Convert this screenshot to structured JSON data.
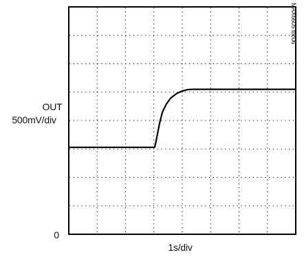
{
  "chart_data": {
    "type": "line",
    "title": "",
    "channel_label": "OUT",
    "vertical_scale": "500mV/div",
    "horizontal_scale": "1s/div",
    "zero_marker": "0",
    "figure_id": "MAX6605 toc06",
    "xlim": [
      0,
      8
    ],
    "ylim": [
      0,
      8
    ],
    "grid": true,
    "x_unit": "div",
    "y_unit": "div",
    "series": [
      {
        "x": [
          0,
          3.03,
          3.08,
          3.2,
          3.3,
          3.45,
          3.6,
          3.8,
          4.0,
          4.2,
          4.4,
          8.0
        ],
        "y": [
          3.06,
          3.06,
          3.3,
          3.9,
          4.3,
          4.6,
          4.8,
          4.95,
          5.04,
          5.09,
          5.1,
          5.1
        ]
      }
    ]
  }
}
